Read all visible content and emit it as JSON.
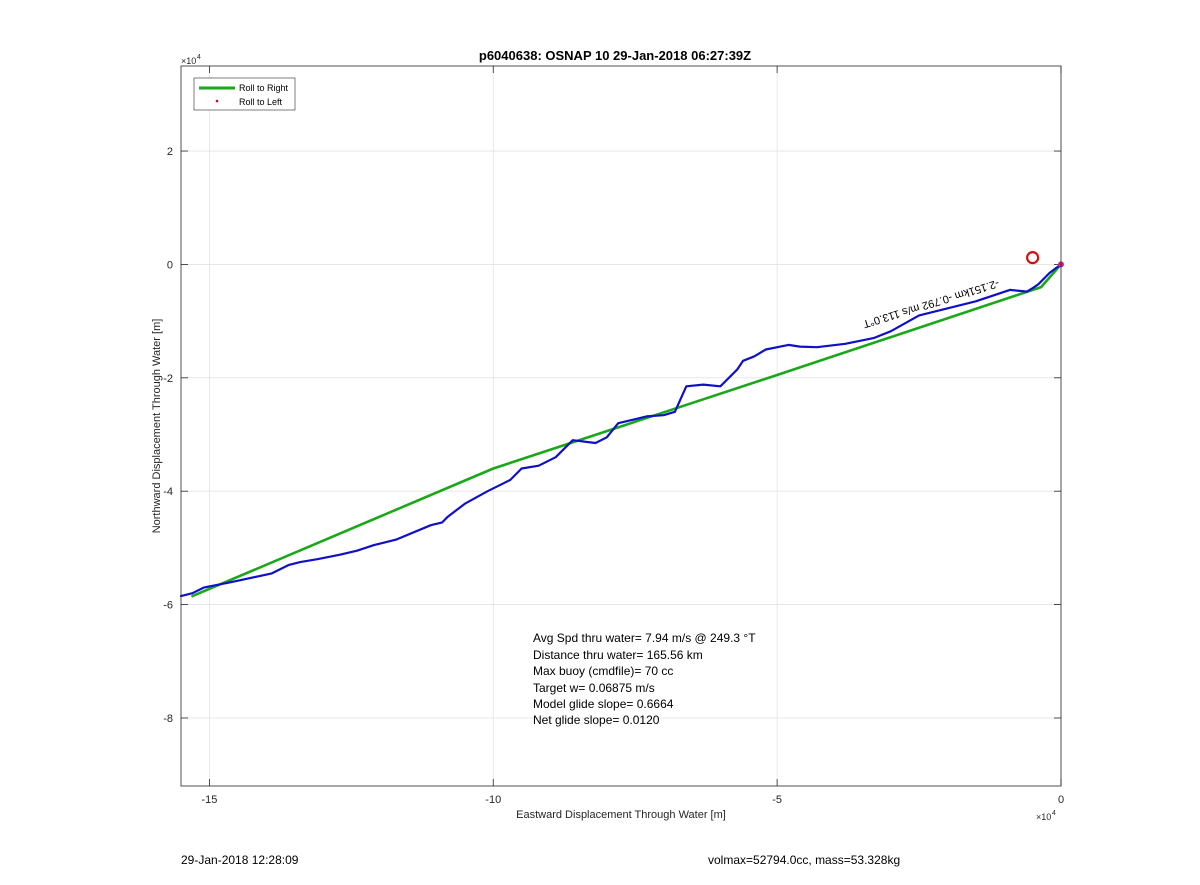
{
  "chart_data": {
    "type": "line",
    "title": "p6040638: OSNAP 10 29-Jan-2018 06:27:39Z",
    "xlabel": "Eastward Displacement Through Water [m]",
    "ylabel": "Northward Displacement Through Water [m]",
    "x_exponent_label": "×10",
    "x_exponent_power": "4",
    "y_exponent_label": "×10",
    "y_exponent_power": "4",
    "xlim": [
      -15.5,
      0
    ],
    "ylim": [
      -9.2,
      3.5
    ],
    "xticks": [
      -15,
      -10,
      -5,
      0
    ],
    "yticks": [
      -8,
      -6,
      -4,
      -2,
      0,
      2
    ],
    "xtick_labels": [
      "-15",
      "-10",
      "-5",
      "0"
    ],
    "ytick_labels": [
      "-8",
      "-6",
      "-4",
      "-2",
      "0",
      "2"
    ],
    "grid": true,
    "legend_position": "top-left",
    "legend": [
      {
        "name": "Roll to Right",
        "style": "line",
        "color": "#1aa81a"
      },
      {
        "name": "Roll to Left",
        "style": "dot",
        "color": "#e8000b"
      }
    ],
    "series": [
      {
        "name": "Roll to Right",
        "color": "#1aa81a",
        "x": [
          0,
          -0.35,
          -5.0,
          -10.0,
          -15.3
        ],
        "y": [
          0,
          -0.4,
          -1.95,
          -3.6,
          -5.85
        ]
      },
      {
        "name": "track",
        "color": "#1010c8",
        "x": [
          0,
          -0.2,
          -0.4,
          -0.5,
          -0.6,
          -0.9,
          -1.5,
          -2.5,
          -3.0,
          -3.3,
          -3.8,
          -4.3,
          -4.6,
          -4.8,
          -5.2,
          -5.4,
          -5.6,
          -5.7,
          -6.0,
          -6.3,
          -6.6,
          -6.8,
          -7.0,
          -7.3,
          -7.5,
          -7.8,
          -8.0,
          -8.2,
          -8.6,
          -8.9,
          -9.2,
          -9.5,
          -9.7,
          -10.1,
          -10.5,
          -10.8,
          -10.9,
          -11.1,
          -11.7,
          -12.1,
          -12.4,
          -12.7,
          -13.1,
          -13.4,
          -13.6,
          -13.9,
          -14.6,
          -15.1,
          -15.3,
          -15.5
        ],
        "y": [
          0,
          -0.15,
          -0.35,
          -0.42,
          -0.48,
          -0.45,
          -0.65,
          -0.9,
          -1.18,
          -1.3,
          -1.4,
          -1.46,
          -1.45,
          -1.42,
          -1.5,
          -1.62,
          -1.7,
          -1.85,
          -2.15,
          -2.12,
          -2.15,
          -2.6,
          -2.66,
          -2.68,
          -2.73,
          -2.8,
          -3.05,
          -3.15,
          -3.1,
          -3.4,
          -3.55,
          -3.6,
          -3.8,
          -4.0,
          -4.22,
          -4.45,
          -4.55,
          -4.6,
          -4.85,
          -4.95,
          -5.05,
          -5.12,
          -5.2,
          -5.25,
          -5.3,
          -5.45,
          -5.6,
          -5.7,
          -5.8,
          -5.85
        ]
      }
    ],
    "markers": [
      {
        "name": "start-circle",
        "x": -0.5,
        "y": 0.12,
        "color": "#d01010"
      }
    ],
    "rotated_label": {
      "text": "-2.151km -0.792 m/s 113.0°T",
      "x": -3.5,
      "y": -1.0,
      "angle": 163
    },
    "stats": [
      "Avg Spd thru water=  7.94 m/s @ 249.3 °T",
      "Distance thru water= 165.56 km",
      "Max buoy (cmdfile)= 70 cc",
      "Target w= 0.06875 m/s",
      "Model glide slope= 0.6664",
      "Net glide slope= 0.0120"
    ]
  },
  "footer": {
    "timestamp": "29-Jan-2018 12:28:09",
    "volmax": "volmax=52794.0cc, mass=53.328kg"
  }
}
